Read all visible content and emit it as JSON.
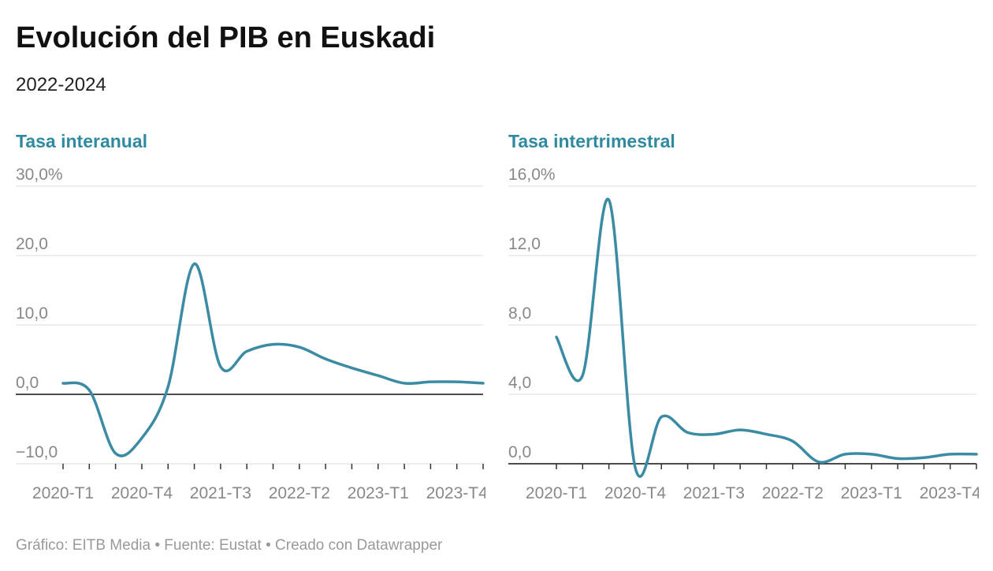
{
  "title": "Evolución del PIB en Euskadi",
  "subtitle": "2022-2024",
  "footer": "Gráfico: EITB Media • Fuente: Eustat • Creado con Datawrapper",
  "chart_data": [
    {
      "type": "line",
      "title": "Tasa interanual",
      "categories": [
        "2020-T1",
        null,
        null,
        "2020-T4",
        null,
        null,
        "2021-T3",
        null,
        null,
        "2022-T2",
        null,
        null,
        "2023-T1",
        null,
        null,
        "2023-T4",
        null
      ],
      "series": [
        {
          "name": "Tasa interanual",
          "color": "#3a8ba3",
          "values": [
            1.6,
            0.6,
            -8.5,
            -6.3,
            1.1,
            18.8,
            4.0,
            6.2,
            7.2,
            6.8,
            5.1,
            3.8,
            2.7,
            1.6,
            1.8,
            1.8,
            1.6
          ]
        }
      ],
      "ylim": [
        -10,
        30
      ],
      "yticks": [
        {
          "value": -10,
          "label": "−10,0"
        },
        {
          "value": 0,
          "label": "0,0"
        },
        {
          "value": 10,
          "label": "10,0"
        },
        {
          "value": 20,
          "label": "20,0"
        },
        {
          "value": 30,
          "label": "30,0%"
        }
      ],
      "grid": true
    },
    {
      "type": "line",
      "title": "Tasa intertrimestral",
      "categories": [
        "2020-T1",
        null,
        null,
        "2020-T4",
        null,
        null,
        "2021-T3",
        null,
        null,
        "2022-T2",
        null,
        null,
        "2023-T1",
        null,
        null,
        "2023-T4",
        null
      ],
      "series": [
        {
          "name": "Tasa intertrimestral",
          "color": "#3a8ba3",
          "values": [
            7.3,
            5.1,
            15.2,
            -0.2,
            2.7,
            1.8,
            1.7,
            1.95,
            1.7,
            1.3,
            0.1,
            0.55,
            0.55,
            0.3,
            0.35,
            0.55,
            0.55
          ]
        }
      ],
      "ylim": [
        0,
        16
      ],
      "yticks": [
        {
          "value": 0,
          "label": "0,0"
        },
        {
          "value": 4,
          "label": "4,0"
        },
        {
          "value": 8,
          "label": "8,0"
        },
        {
          "value": 12,
          "label": "12,0"
        },
        {
          "value": 16,
          "label": "16,0%"
        }
      ],
      "grid": true
    }
  ]
}
